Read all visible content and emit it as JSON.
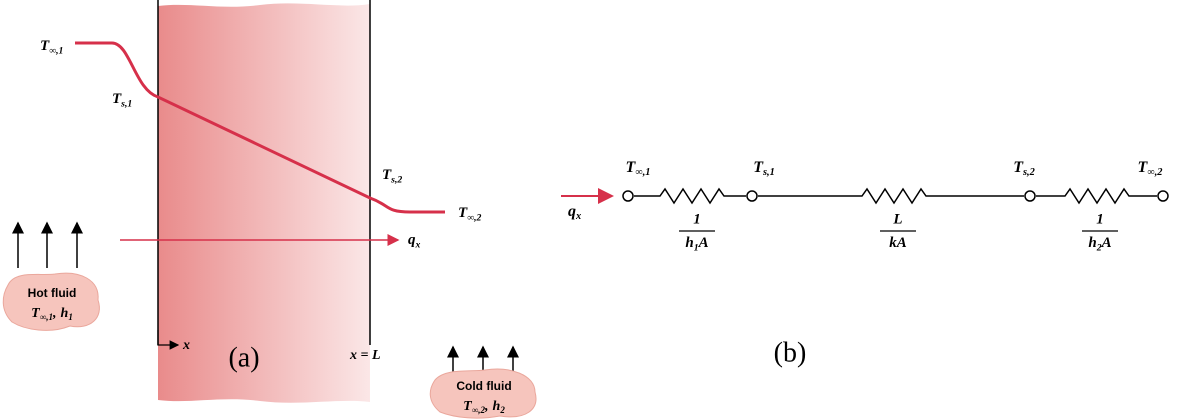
{
  "panel_a": {
    "temperature_labels": [
      {
        "symbol": "T",
        "subscript": "∞,1"
      },
      {
        "symbol": "T",
        "subscript": "s,1"
      },
      {
        "symbol": "T",
        "subscript": "s,2"
      },
      {
        "symbol": "T",
        "subscript": "∞,2"
      }
    ],
    "heat_flux": {
      "symbol": "q",
      "subscript": "x"
    },
    "x_axis": "x",
    "wall_end": "x = L",
    "caption": "(a)",
    "hot_fluid": {
      "name": "Hot fluid",
      "temperature": {
        "symbol": "T",
        "subscript": "∞,1"
      },
      "separator": ",",
      "coefficient": {
        "symbol": "h",
        "subscript": "1"
      }
    },
    "cold_fluid": {
      "name": "Cold fluid",
      "temperature": {
        "symbol": "T",
        "subscript": "∞,2"
      },
      "separator": ",",
      "coefficient": {
        "symbol": "h",
        "subscript": "2"
      }
    }
  },
  "panel_b": {
    "node_labels": [
      {
        "symbol": "T",
        "subscript": "∞,1"
      },
      {
        "symbol": "T",
        "subscript": "s,1"
      },
      {
        "symbol": "T",
        "subscript": "s,2"
      },
      {
        "symbol": "T",
        "subscript": "∞,2"
      }
    ],
    "heat_flux": {
      "symbol": "q",
      "subscript": "x"
    },
    "resistances": [
      {
        "numerator": "1",
        "denominator": {
          "symbol": "h",
          "subscript": "1",
          "suffix": "A"
        }
      },
      {
        "numerator": "L",
        "denominator": {
          "symbol": "kA"
        }
      },
      {
        "numerator": "1",
        "denominator": {
          "symbol": "h",
          "subscript": "2",
          "suffix": "A"
        }
      }
    ],
    "caption": "(b)"
  }
}
